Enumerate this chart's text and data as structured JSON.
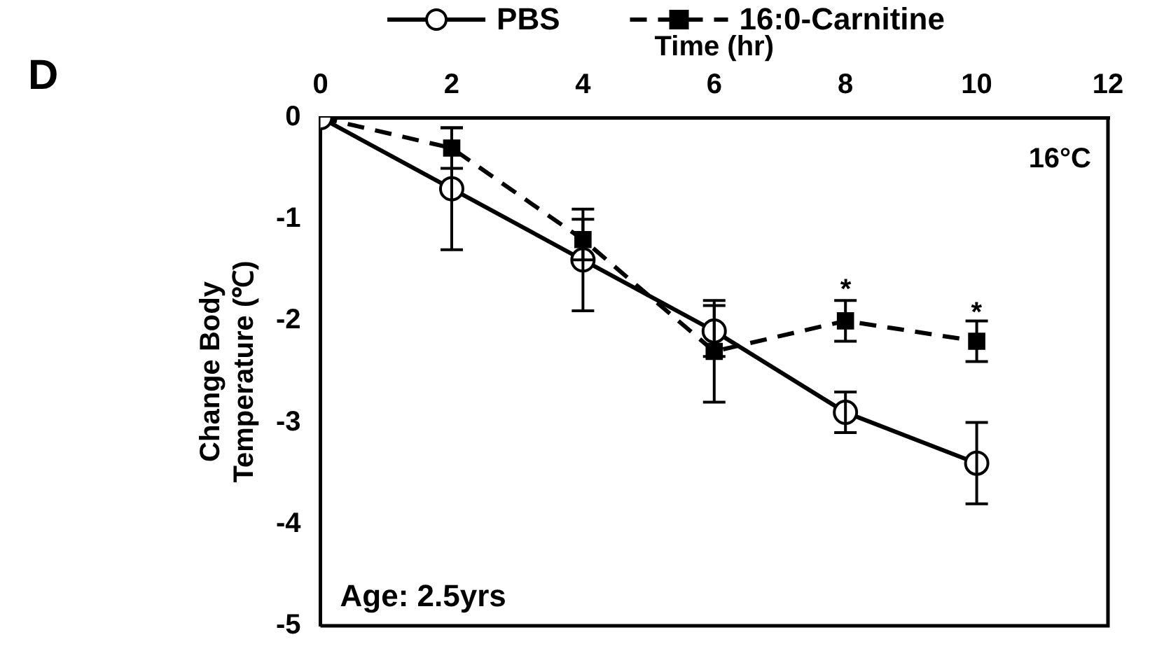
{
  "chart_data": {
    "type": "line",
    "xlabel": "Time (hr)",
    "ylabel": "Change Body\nTemperature (℃)",
    "x": [
      0,
      2,
      4,
      6,
      8,
      10
    ],
    "series": [
      {
        "name": "PBS",
        "color": "#000000",
        "marker": "circle",
        "line_style": "solid",
        "values": [
          0,
          -0.7,
          -1.4,
          -2.1,
          -2.9,
          -3.4
        ],
        "errors": [
          null,
          0.6,
          0.5,
          0.25,
          0.2,
          0.4
        ]
      },
      {
        "name": "16:0-Carnitine",
        "color": "#000000",
        "marker": "square",
        "line_style": "dashed",
        "values": [
          0,
          -0.3,
          -1.2,
          -2.3,
          -2.0,
          -2.2
        ],
        "errors": [
          null,
          0.2,
          0.2,
          0.5,
          0.2,
          0.2
        ]
      }
    ],
    "xlim": [
      0,
      12
    ],
    "xticks": [
      0,
      2,
      4,
      6,
      8,
      10,
      12
    ],
    "ylim": [
      -5,
      0
    ],
    "yticks": [
      -5,
      -4,
      -3,
      -2,
      -1,
      0
    ],
    "grid": false,
    "legend": "top",
    "annotations": [
      "16°C",
      "Age: 2.5yrs",
      "D",
      "*",
      "*"
    ]
  }
}
